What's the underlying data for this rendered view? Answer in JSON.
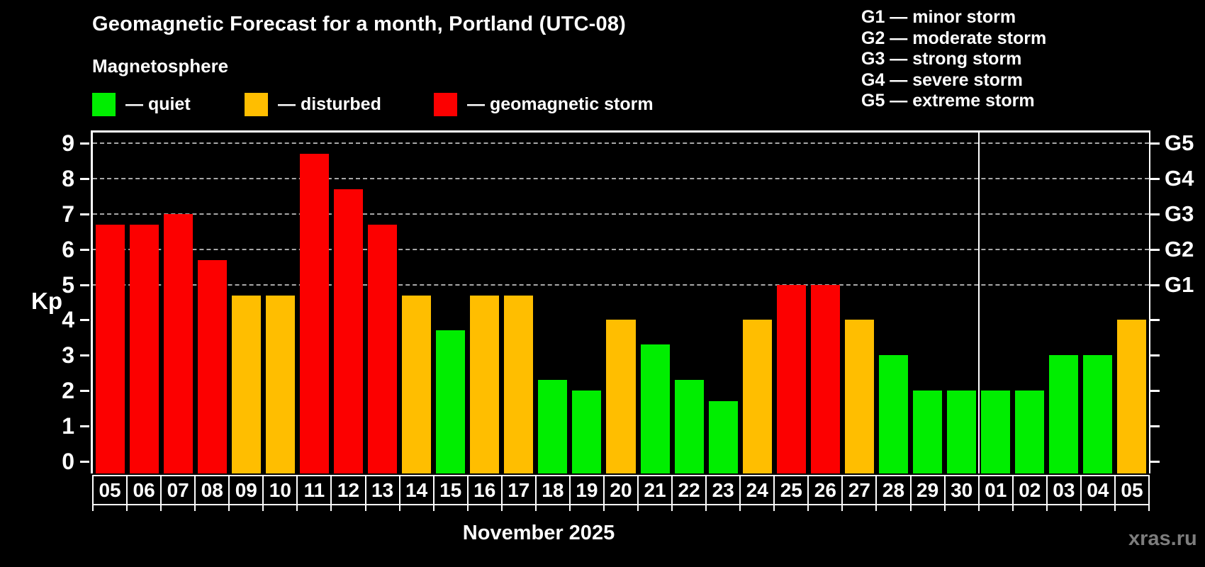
{
  "title": "Geomagnetic Forecast for a month, Portland (UTC-08)",
  "subtitle": "Magnetosphere",
  "legend": [
    {
      "key": "quiet",
      "label": "— quiet",
      "color": "#00ee00"
    },
    {
      "key": "disturbed",
      "label": "— disturbed",
      "color": "#ffbe00"
    },
    {
      "key": "storm",
      "label": "— geomagnetic storm",
      "color": "#fc0000"
    }
  ],
  "g_scale_legend": [
    "G1 — minor storm",
    "G2 — moderate storm",
    "G3 — strong storm",
    "G4 — severe storm",
    "G5 — extreme storm"
  ],
  "axis": {
    "y_label": "Kp",
    "y_ticks": [
      0,
      1,
      2,
      3,
      4,
      5,
      6,
      7,
      8,
      9
    ],
    "gridline_values": [
      5,
      6,
      7,
      8,
      9
    ],
    "right_g_labels": {
      "5": "G1",
      "6": "G2",
      "7": "G3",
      "8": "G4",
      "9": "G5"
    }
  },
  "month_label": "November 2025",
  "watermark": "xras.ru",
  "chart_data": {
    "type": "bar",
    "title": "Geomagnetic Forecast for a month, Portland (UTC-08)",
    "ylabel": "Kp",
    "ylim": [
      0,
      9
    ],
    "categories": [
      "05",
      "06",
      "07",
      "08",
      "09",
      "10",
      "11",
      "12",
      "13",
      "14",
      "15",
      "16",
      "17",
      "18",
      "19",
      "20",
      "21",
      "22",
      "23",
      "24",
      "25",
      "26",
      "27",
      "28",
      "29",
      "30",
      "01",
      "02",
      "03",
      "04",
      "05"
    ],
    "values": [
      6.7,
      6.7,
      7.0,
      5.7,
      4.7,
      4.7,
      8.7,
      7.7,
      6.7,
      4.7,
      3.7,
      4.7,
      4.7,
      2.3,
      2.0,
      4.0,
      3.3,
      2.3,
      1.7,
      4.0,
      5.0,
      5.0,
      4.0,
      3.0,
      2.0,
      2.0,
      2.0,
      2.0,
      3.0,
      3.0,
      4.0
    ],
    "status": [
      "storm",
      "storm",
      "storm",
      "storm",
      "disturbed",
      "disturbed",
      "storm",
      "storm",
      "storm",
      "disturbed",
      "quiet",
      "disturbed",
      "disturbed",
      "quiet",
      "quiet",
      "disturbed",
      "quiet",
      "quiet",
      "quiet",
      "disturbed",
      "storm",
      "storm",
      "disturbed",
      "quiet",
      "quiet",
      "quiet",
      "quiet",
      "quiet",
      "quiet",
      "quiet",
      "disturbed"
    ],
    "colors": {
      "quiet": "#00ee00",
      "disturbed": "#ffbe00",
      "storm": "#fc0000"
    },
    "month_boundary_after_index": 25,
    "legend_position": "top-left",
    "grid": "dashed horizontal at Kp 5-9"
  }
}
